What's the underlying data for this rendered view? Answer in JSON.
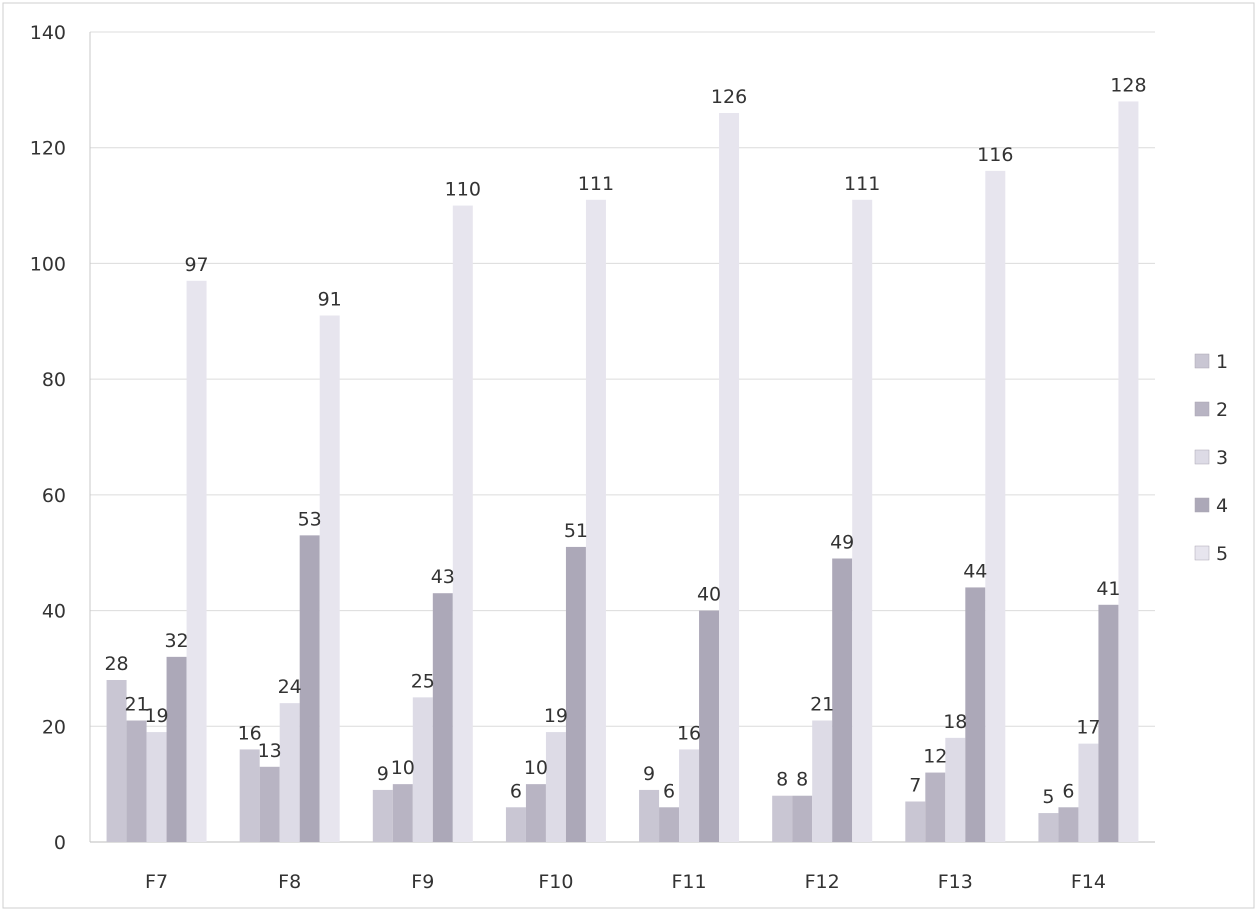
{
  "chart_data": {
    "type": "bar",
    "title": "",
    "xlabel": "",
    "ylabel": "",
    "ylim": [
      0,
      140
    ],
    "yticks": [
      0,
      20,
      40,
      60,
      80,
      100,
      120,
      140
    ],
    "grid": true,
    "legend_position": "right",
    "categories": [
      "F7",
      "F8",
      "F9",
      "F10",
      "F11",
      "F12",
      "F13",
      "F14"
    ],
    "series": [
      {
        "name": "1",
        "color": "#c9c6d3",
        "values": [
          28,
          16,
          9,
          6,
          9,
          8,
          7,
          5
        ]
      },
      {
        "name": "2",
        "color": "#b8b4c3",
        "values": [
          21,
          13,
          10,
          10,
          6,
          8,
          12,
          6
        ]
      },
      {
        "name": "3",
        "color": "#dddbe6",
        "values": [
          19,
          24,
          25,
          19,
          16,
          21,
          18,
          17
        ]
      },
      {
        "name": "4",
        "color": "#aca8b8",
        "values": [
          32,
          53,
          43,
          51,
          40,
          49,
          44,
          41
        ]
      },
      {
        "name": "5",
        "color": "#e7e5ee",
        "values": [
          97,
          91,
          110,
          111,
          126,
          111,
          116,
          128
        ]
      }
    ]
  }
}
